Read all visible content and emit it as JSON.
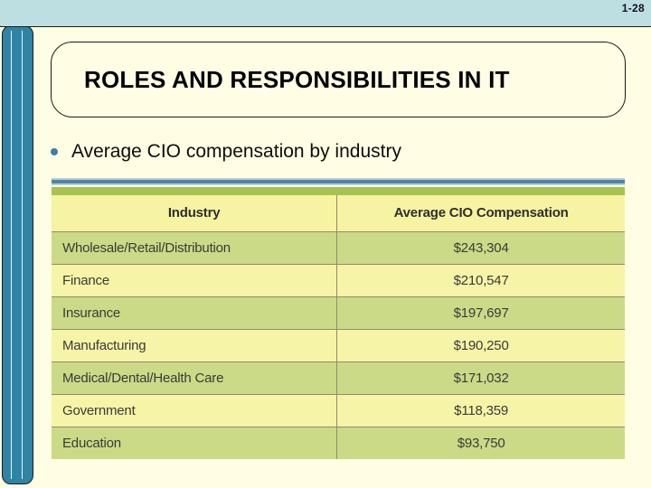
{
  "slide": {
    "page_number": "1-28",
    "title": "ROLES AND RESPONSIBILITIES IN IT",
    "bullet": "Average CIO compensation by industry"
  },
  "table": {
    "columns": {
      "industry": "Industry",
      "compensation": "Average CIO Compensation"
    },
    "rows": [
      {
        "industry": "Wholesale/Retail/Distribution",
        "compensation": "$243,304"
      },
      {
        "industry": "Finance",
        "compensation": "$210,547"
      },
      {
        "industry": "Insurance",
        "compensation": "$197,697"
      },
      {
        "industry": "Manufacturing",
        "compensation": "$190,250"
      },
      {
        "industry": "Medical/Dental/Health Care",
        "compensation": "$171,032"
      },
      {
        "industry": "Government",
        "compensation": "$118,359"
      },
      {
        "industry": "Education",
        "compensation": "$93,750"
      }
    ]
  },
  "colors": {
    "background": "#FFFDE4",
    "top_bar": "#BEDFE2",
    "left_bar": "#2E84A4",
    "bullet_dot": "#3E80A0",
    "stripe_blue": "#4E86A3",
    "stripe_blue_light": "#B6CFDA",
    "stripe_green": "#A7C24F",
    "header_row": "#F6F3A2",
    "row_green": "#CBDA86",
    "row_yellow": "#F6F4A6",
    "table_line": "#8D8D72",
    "text_dark": "#3A3A3A"
  }
}
